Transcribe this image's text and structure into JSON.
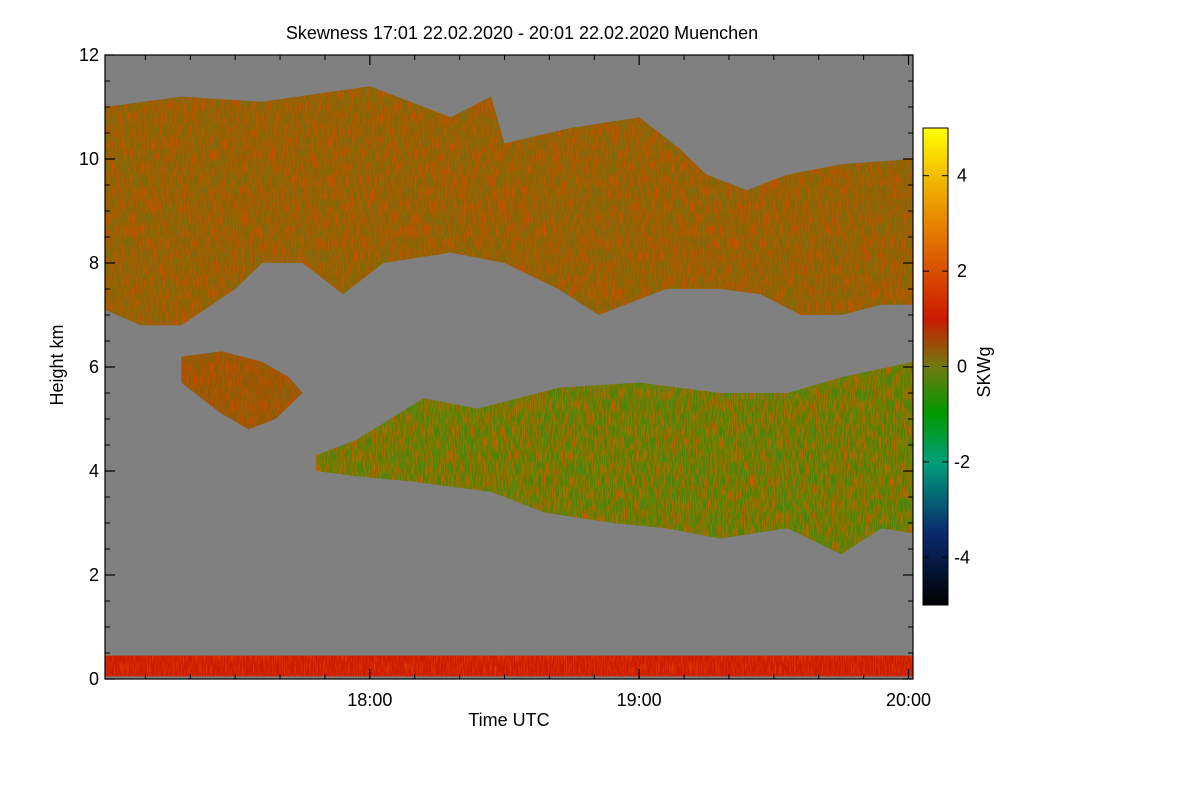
{
  "chart_data": {
    "type": "heatmap",
    "title": "Skewness   17:01 22.02.2020 - 20:01 22.02.2020 Muenchen",
    "xlabel": "Time UTC",
    "ylabel": "Height km",
    "x_ticks": [
      "18:00",
      "19:00",
      "20:00"
    ],
    "x_tick_values_hours": [
      18,
      19,
      20
    ],
    "xlim_hours": [
      17.0167,
      20.0167
    ],
    "ylim_km": [
      0,
      12
    ],
    "y_ticks": [
      "0",
      "2",
      "4",
      "6",
      "8",
      "10",
      "12"
    ],
    "y_tick_values": [
      0,
      2,
      4,
      6,
      8,
      10,
      12
    ],
    "colorbar": {
      "label": "SKWg",
      "range": [
        -5,
        5
      ],
      "ticks": [
        "4",
        "2",
        "0",
        "-2",
        "-4"
      ],
      "tick_values": [
        4,
        2,
        0,
        -2,
        -4
      ],
      "stops": [
        {
          "value": -5,
          "color": "#000000"
        },
        {
          "value": -3.5,
          "color": "#0a2a6e"
        },
        {
          "value": -2,
          "color": "#00a07a"
        },
        {
          "value": -1,
          "color": "#009a00"
        },
        {
          "value": 0,
          "color": "#707a10"
        },
        {
          "value": 1,
          "color": "#cc1a00"
        },
        {
          "value": 2.5,
          "color": "#e06a00"
        },
        {
          "value": 3.8,
          "color": "#f0b000"
        },
        {
          "value": 5,
          "color": "#ffff00"
        }
      ]
    },
    "background_color": "#808080",
    "regions": [
      {
        "name": "upper cloud layer",
        "dominant_value": 0.2,
        "top_km": [
          [
            17.0167,
            11.0
          ],
          [
            17.3,
            11.2
          ],
          [
            17.6,
            11.1
          ],
          [
            18.0,
            11.4
          ],
          [
            18.3,
            10.8
          ],
          [
            18.45,
            11.2
          ],
          [
            18.5,
            10.3
          ],
          [
            18.75,
            10.6
          ],
          [
            19.0,
            10.8
          ],
          [
            19.15,
            10.2
          ],
          [
            19.25,
            9.7
          ],
          [
            19.4,
            9.4
          ],
          [
            19.55,
            9.7
          ],
          [
            19.75,
            9.9
          ],
          [
            20.0167,
            10.0
          ]
        ],
        "bottom_km": [
          [
            17.0167,
            7.1
          ],
          [
            17.15,
            6.8
          ],
          [
            17.3,
            6.8
          ],
          [
            17.5,
            7.5
          ],
          [
            17.6,
            8.0
          ],
          [
            17.75,
            8.0
          ],
          [
            17.9,
            7.4
          ],
          [
            18.05,
            8.0
          ],
          [
            18.3,
            8.2
          ],
          [
            18.5,
            8.0
          ],
          [
            18.7,
            7.5
          ],
          [
            18.85,
            7.0
          ],
          [
            19.0,
            7.3
          ],
          [
            19.1,
            7.5
          ],
          [
            19.3,
            7.5
          ],
          [
            19.45,
            7.4
          ],
          [
            19.6,
            7.0
          ],
          [
            19.75,
            7.0
          ],
          [
            19.9,
            7.2
          ],
          [
            20.0167,
            7.2
          ]
        ]
      },
      {
        "name": "isolated cloud patch",
        "dominant_value": 0.3,
        "top_km": [
          [
            17.3,
            6.2
          ],
          [
            17.45,
            6.3
          ],
          [
            17.6,
            6.1
          ],
          [
            17.7,
            5.8
          ],
          [
            17.75,
            5.5
          ]
        ],
        "bottom_km": [
          [
            17.3,
            5.7
          ],
          [
            17.45,
            5.1
          ],
          [
            17.55,
            4.8
          ],
          [
            17.65,
            5.0
          ],
          [
            17.75,
            5.5
          ]
        ]
      },
      {
        "name": "lower cloud layer",
        "dominant_value": -0.3,
        "top_km": [
          [
            17.8,
            4.3
          ],
          [
            17.95,
            4.6
          ],
          [
            18.2,
            5.4
          ],
          [
            18.4,
            5.2
          ],
          [
            18.55,
            5.4
          ],
          [
            18.7,
            5.6
          ],
          [
            19.0,
            5.7
          ],
          [
            19.3,
            5.5
          ],
          [
            19.55,
            5.5
          ],
          [
            19.75,
            5.8
          ],
          [
            20.0167,
            6.1
          ]
        ],
        "bottom_km": [
          [
            17.8,
            4.0
          ],
          [
            17.95,
            3.9
          ],
          [
            18.15,
            3.8
          ],
          [
            18.3,
            3.7
          ],
          [
            18.45,
            3.6
          ],
          [
            18.65,
            3.2
          ],
          [
            18.9,
            3.0
          ],
          [
            19.1,
            2.9
          ],
          [
            19.3,
            2.7
          ],
          [
            19.55,
            2.9
          ],
          [
            19.75,
            2.4
          ],
          [
            19.9,
            2.9
          ],
          [
            20.0167,
            2.8
          ]
        ]
      },
      {
        "name": "near-surface band",
        "dominant_value": 1.0,
        "top_km": [
          [
            17.0167,
            0.45
          ],
          [
            20.0167,
            0.45
          ]
        ],
        "bottom_km": [
          [
            17.0167,
            0.05
          ],
          [
            20.0167,
            0.05
          ]
        ]
      }
    ]
  }
}
